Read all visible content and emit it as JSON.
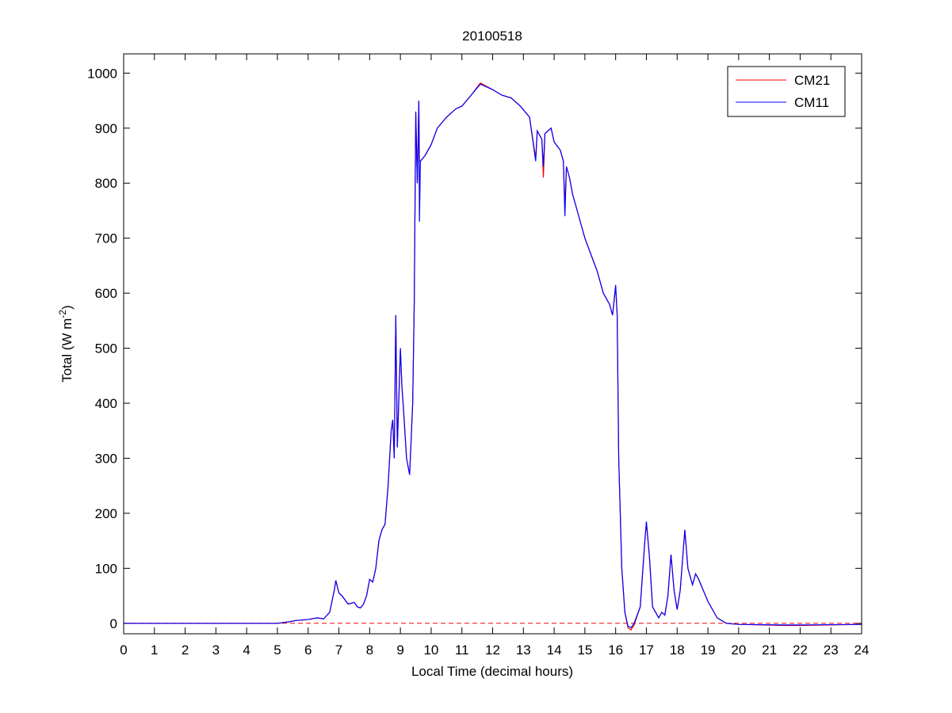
{
  "chart_data": {
    "type": "line",
    "title": "20100518",
    "xlabel": "Local Time (decimal hours)",
    "ylabel": [
      "Total (W m",
      "-2",
      ")"
    ],
    "xlim": [
      0,
      24
    ],
    "ylim": [
      -19,
      1035
    ],
    "xticks": [
      0,
      1,
      2,
      3,
      4,
      5,
      6,
      7,
      8,
      9,
      10,
      11,
      12,
      13,
      14,
      15,
      16,
      17,
      18,
      19,
      20,
      21,
      22,
      23,
      24
    ],
    "yticks": [
      0,
      100,
      200,
      300,
      400,
      500,
      600,
      700,
      800,
      900,
      1000
    ],
    "hline": {
      "value": 0,
      "color": "#ff0000"
    },
    "legend": "upper right",
    "x": [
      0,
      4,
      5,
      5.4,
      5.6,
      6,
      6.3,
      6.5,
      6.7,
      6.85,
      6.9,
      7.0,
      7.1,
      7.3,
      7.5,
      7.6,
      7.7,
      7.8,
      7.9,
      8.0,
      8.1,
      8.2,
      8.3,
      8.4,
      8.5,
      8.6,
      8.7,
      8.75,
      8.8,
      8.85,
      8.9,
      9.0,
      9.05,
      9.1,
      9.2,
      9.3,
      9.4,
      9.45,
      9.5,
      9.55,
      9.6,
      9.62,
      9.65,
      9.8,
      10,
      10.2,
      10.5,
      10.8,
      11,
      11.3,
      11.6,
      12,
      12.3,
      12.6,
      12.9,
      13.2,
      13.4,
      13.45,
      13.6,
      13.65,
      13.7,
      13.9,
      14.0,
      14.2,
      14.3,
      14.35,
      14.4,
      14.5,
      14.6,
      14.8,
      15.0,
      15.2,
      15.4,
      15.6,
      15.8,
      15.9,
      16.0,
      16.05,
      16.1,
      16.2,
      16.3,
      16.4,
      16.5,
      16.6,
      16.8,
      16.95,
      17.0,
      17.1,
      17.2,
      17.4,
      17.5,
      17.6,
      17.7,
      17.8,
      17.9,
      18.0,
      18.1,
      18.25,
      18.35,
      18.5,
      18.6,
      18.7,
      19.0,
      19.3,
      19.6,
      20,
      21.5,
      22,
      24
    ],
    "series": [
      {
        "name": "CM21",
        "color": "#ff0000",
        "values": [
          0,
          0,
          0,
          3,
          5,
          7,
          10,
          8,
          20,
          60,
          78,
          55,
          50,
          35,
          38,
          30,
          28,
          35,
          50,
          80,
          75,
          100,
          150,
          170,
          180,
          250,
          350,
          370,
          300,
          560,
          320,
          500,
          430,
          390,
          300,
          270,
          400,
          580,
          930,
          800,
          950,
          840,
          840,
          850,
          870,
          900,
          920,
          935,
          940,
          960,
          982,
          970,
          960,
          955,
          940,
          920,
          845,
          895,
          880,
          810,
          890,
          900,
          875,
          860,
          840,
          760,
          830,
          810,
          780,
          740,
          700,
          670,
          640,
          600,
          580,
          560,
          612,
          560,
          300,
          100,
          20,
          -8,
          -12,
          -3,
          30,
          150,
          183,
          120,
          30,
          10,
          20,
          15,
          50,
          125,
          60,
          25,
          60,
          170,
          100,
          70,
          90,
          80,
          40,
          10,
          0,
          -2,
          -4,
          -4,
          -2
        ]
      },
      {
        "name": "CM11",
        "color": "#0000ff",
        "values": [
          0,
          0,
          0,
          3,
          5,
          7,
          10,
          8,
          20,
          60,
          78,
          55,
          50,
          35,
          38,
          30,
          28,
          35,
          50,
          80,
          75,
          100,
          150,
          170,
          180,
          250,
          350,
          370,
          300,
          560,
          320,
          500,
          430,
          390,
          300,
          270,
          400,
          580,
          930,
          800,
          950,
          730,
          840,
          850,
          870,
          900,
          920,
          935,
          940,
          960,
          980,
          970,
          960,
          955,
          940,
          920,
          840,
          895,
          880,
          830,
          890,
          900,
          875,
          860,
          840,
          740,
          830,
          810,
          780,
          740,
          700,
          670,
          640,
          600,
          580,
          560,
          615,
          560,
          300,
          100,
          20,
          -5,
          -8,
          0,
          30,
          150,
          185,
          120,
          30,
          10,
          20,
          15,
          50,
          125,
          60,
          25,
          60,
          170,
          100,
          70,
          90,
          80,
          40,
          10,
          0,
          -2,
          -3,
          -3,
          -2
        ]
      }
    ]
  }
}
